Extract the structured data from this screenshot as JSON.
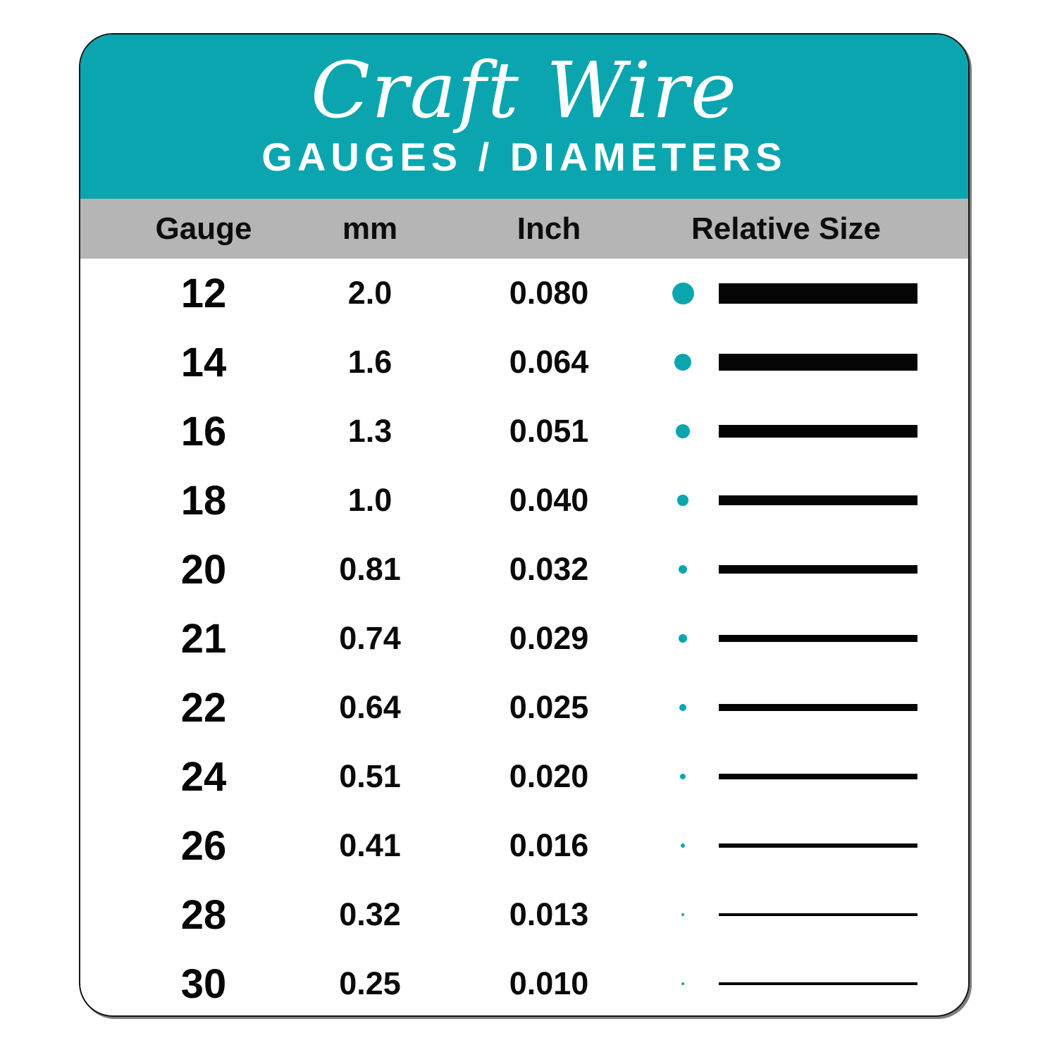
{
  "header": {
    "title": "Craft Wire",
    "subtitle": "GAUGES / DIAMETERS"
  },
  "columns": {
    "gauge": "Gauge",
    "mm": "mm",
    "inch": "Inch",
    "relative_size": "Relative Size"
  },
  "rows": [
    {
      "gauge": "12",
      "mm": "2.0",
      "inch": "0.080"
    },
    {
      "gauge": "14",
      "mm": "1.6",
      "inch": "0.064"
    },
    {
      "gauge": "16",
      "mm": "1.3",
      "inch": "0.051"
    },
    {
      "gauge": "18",
      "mm": "1.0",
      "inch": "0.040"
    },
    {
      "gauge": "20",
      "mm": "0.81",
      "inch": "0.032"
    },
    {
      "gauge": "21",
      "mm": "0.74",
      "inch": "0.029"
    },
    {
      "gauge": "22",
      "mm": "0.64",
      "inch": "0.025"
    },
    {
      "gauge": "24",
      "mm": "0.51",
      "inch": "0.020"
    },
    {
      "gauge": "26",
      "mm": "0.41",
      "inch": "0.016"
    },
    {
      "gauge": "28",
      "mm": "0.32",
      "inch": "0.013"
    },
    {
      "gauge": "30",
      "mm": "0.25",
      "inch": "0.010"
    }
  ],
  "colors": {
    "teal": "#0ba5af",
    "gray": "#b5b5b5",
    "bar_black": "#050505",
    "card_bg": "#ffffff"
  },
  "chart_data": {
    "type": "table",
    "title": "Craft Wire",
    "subtitle": "GAUGES / DIAMETERS",
    "columns": [
      "Gauge",
      "mm",
      "Inch",
      "Relative Size"
    ],
    "gauges": [
      12,
      14,
      16,
      18,
      20,
      21,
      22,
      24,
      26,
      28,
      30
    ],
    "mm": [
      2.0,
      1.6,
      1.3,
      1.0,
      0.81,
      0.74,
      0.64,
      0.51,
      0.41,
      0.32,
      0.25
    ],
    "inch": [
      0.08,
      0.064,
      0.051,
      0.04,
      0.032,
      0.029,
      0.025,
      0.02,
      0.016,
      0.013,
      0.01
    ],
    "relative_size": "teal dot diameter and black bar thickness drawn proportional to wire diameter (mm)",
    "legend_position": "none",
    "grid": false
  }
}
